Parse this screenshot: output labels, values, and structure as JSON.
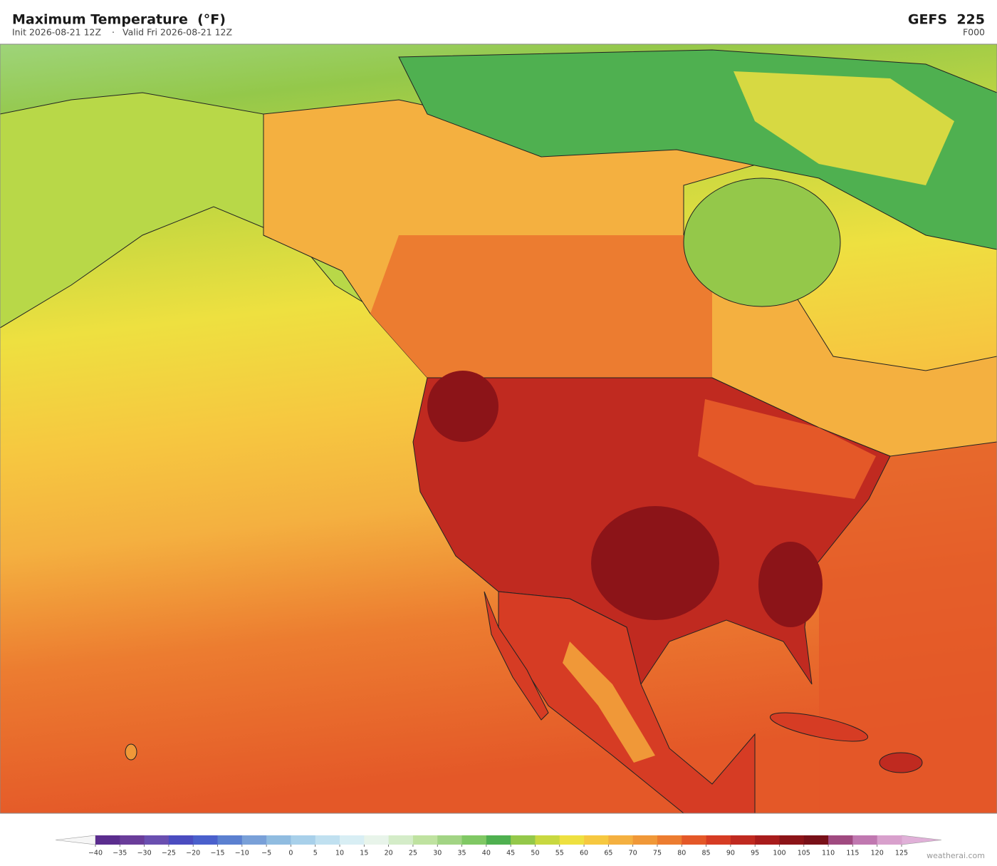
{
  "header": {
    "title": "Maximum Temperature  (°F)",
    "init": "Init 2026-08-21 12Z",
    "separator": "·",
    "valid": "Valid Fri 2026-08-21 12Z",
    "model": "GEFS  225",
    "forecast_hour": "F000"
  },
  "colorbar": {
    "ticks": [
      {
        "value": -40,
        "label": "−40"
      },
      {
        "value": -35,
        "label": "−35"
      },
      {
        "value": -30,
        "label": "−30"
      },
      {
        "value": -25,
        "label": "−25"
      },
      {
        "value": -20,
        "label": "−20"
      },
      {
        "value": -15,
        "label": "−15"
      },
      {
        "value": -10,
        "label": "−10"
      },
      {
        "value": -5,
        "label": "−5"
      },
      0,
      5,
      10,
      15,
      20,
      25,
      30,
      35,
      40,
      45,
      50,
      55,
      60,
      65,
      70,
      75,
      80,
      85,
      90,
      95,
      100,
      105,
      110,
      115,
      120,
      125
    ],
    "colors": [
      "#5b2d8e",
      "#6a3d9a",
      "#6a4fb0",
      "#4b4cc0",
      "#4a60cc",
      "#5b80d0",
      "#79a0d8",
      "#90bce0",
      "#a8d0ea",
      "#c0e0f0",
      "#d8eef4",
      "#e8f4ea",
      "#d4ecc8",
      "#bfe2a0",
      "#a2d484",
      "#80c864",
      "#4fb050",
      "#94c84a",
      "#c8d840",
      "#eee040",
      "#f6c840",
      "#f4b040",
      "#f09838",
      "#ec7c30",
      "#e45828",
      "#d63c24",
      "#c02a20",
      "#a81c1c",
      "#8c1418",
      "#781018",
      "#a04a80",
      "#c078b0",
      "#d8a0cc"
    ],
    "extend_low_color": "#f6f6f6",
    "extend_high_color": "#e0b0d8"
  },
  "footer": {
    "credit": "weatherai.com"
  }
}
